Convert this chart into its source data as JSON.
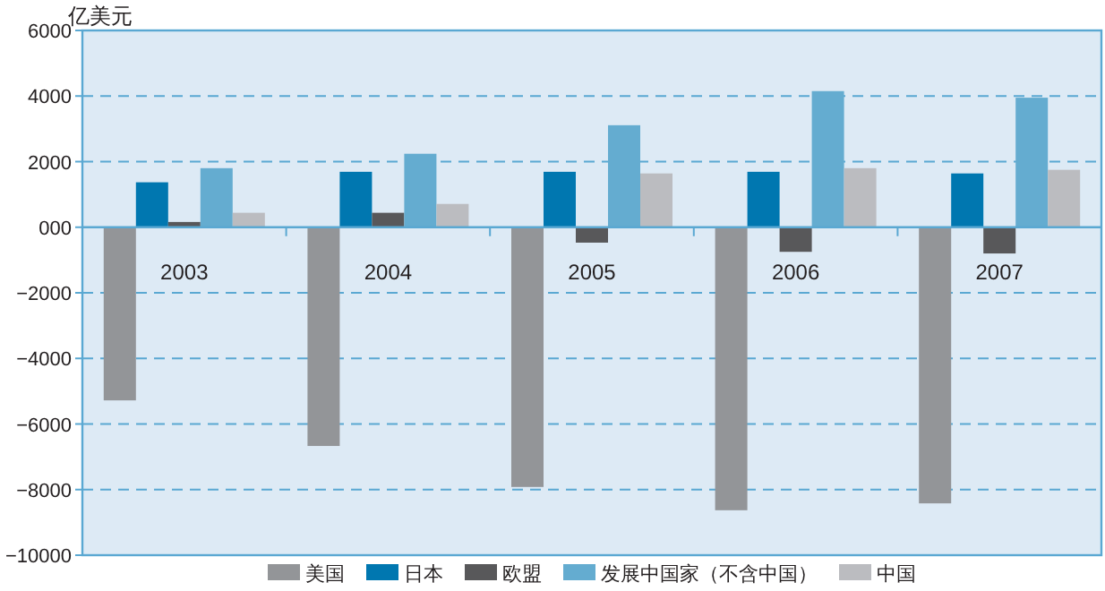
{
  "chart_data": {
    "type": "bar",
    "ylabel": "亿美元",
    "categories": [
      "2003",
      "2004",
      "2005",
      "2006",
      "2007"
    ],
    "series": [
      {
        "name": "美国",
        "color": "#939598",
        "values": [
          -5280,
          -6670,
          -7920,
          -8630,
          -8420
        ]
      },
      {
        "name": "日本",
        "color": "#0077b0",
        "values": [
          1370,
          1690,
          1690,
          1690,
          1640
        ]
      },
      {
        "name": "欧盟",
        "color": "#58585a",
        "values": [
          160,
          440,
          -470,
          -750,
          -800
        ]
      },
      {
        "name": "发展中国家（不含中国）",
        "color": "#64acd0",
        "values": [
          1800,
          2240,
          3110,
          4150,
          3950
        ]
      },
      {
        "name": "中国",
        "color": "#bbbcc0",
        "values": [
          440,
          710,
          1640,
          1800,
          1750
        ]
      }
    ],
    "ylim": [
      -10000,
      6000
    ],
    "yticks": [
      -10000,
      -8000,
      -6000,
      -4000,
      -2000,
      {
        "value": 0,
        "label": "000"
      },
      2000,
      4000,
      6000
    ],
    "grid": "y",
    "legend": "bottom"
  }
}
